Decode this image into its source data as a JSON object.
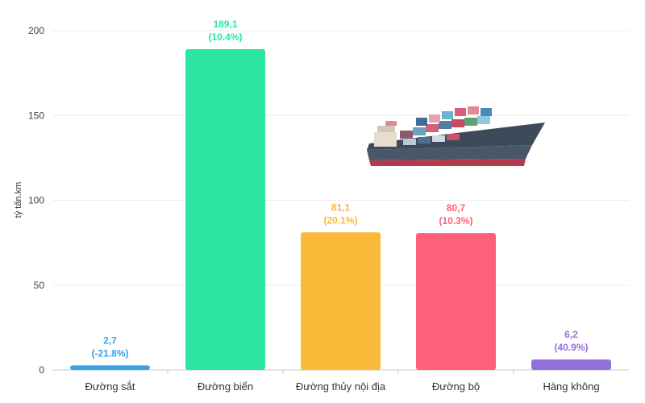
{
  "chart_data": {
    "type": "bar",
    "ylabel": "tỷ tấn.km",
    "ylim": [
      0,
      200
    ],
    "yticks": [
      0,
      50,
      100,
      150,
      200
    ],
    "grid": true,
    "categories": [
      "Đường sắt",
      "Đường biển",
      "Đường thủy nội địa",
      "Đường bộ",
      "Hàng không"
    ],
    "values": [
      2.7,
      189.1,
      81.1,
      80.7,
      6.2
    ],
    "value_labels": [
      "2,7",
      "189,1",
      "81,1",
      "80,7",
      "6,2"
    ],
    "growth_labels": [
      "(-21.8%)",
      "(10.4%)",
      "(20.1%)",
      "(10.3%)",
      "(40.9%)"
    ],
    "colors": [
      "#36a2eb",
      "#2ce5a0",
      "#fbb93a",
      "#ff6079",
      "#9470dc"
    ]
  },
  "decoration": {
    "image": "cargo-ship-illustration"
  }
}
